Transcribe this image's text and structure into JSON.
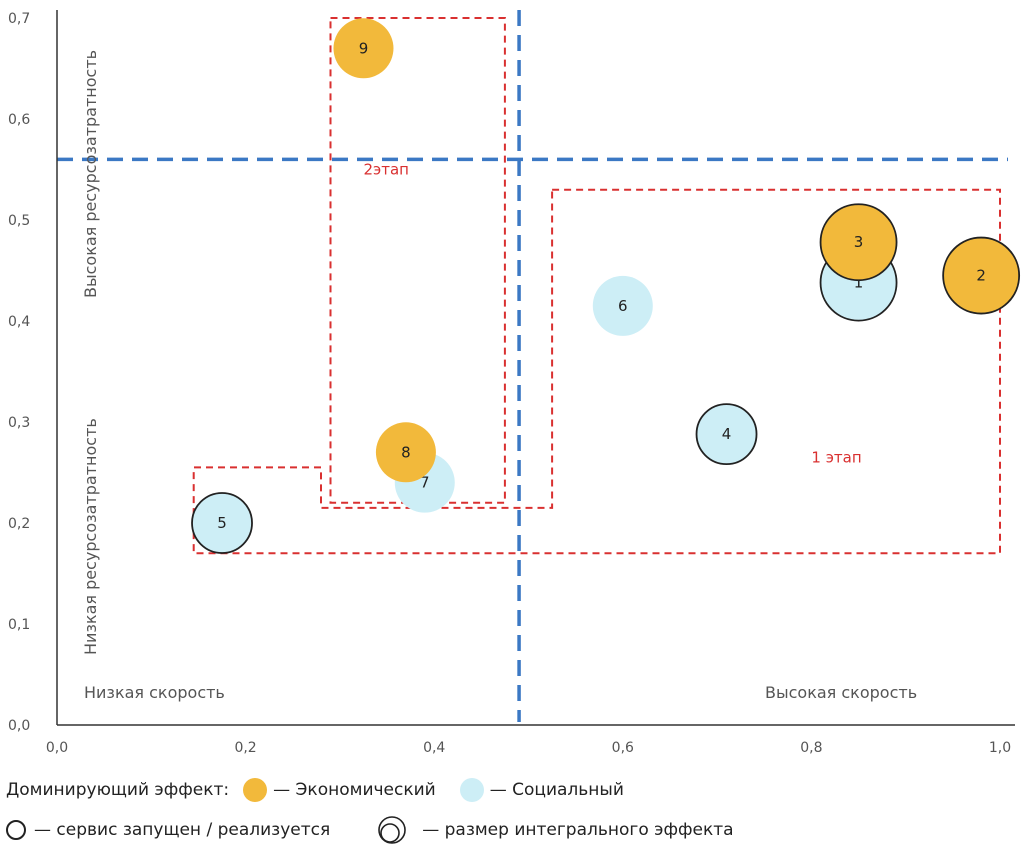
{
  "colors": {
    "economic": "#f2b93b",
    "social": "#cdeef6",
    "axis": "#333333",
    "divider": "#3b78c4",
    "stage": "#d93030"
  },
  "chart_data": {
    "type": "scatter",
    "xlim": [
      0,
      1.0
    ],
    "ylim": [
      0,
      0.7
    ],
    "x_ticks": [
      "0,0",
      "0,2",
      "0,4",
      "0,6",
      "0,8",
      "1,0"
    ],
    "y_ticks": [
      "0,0",
      "0,1",
      "0,2",
      "0,3",
      "0,4",
      "0,5",
      "0,6",
      "0,7"
    ],
    "x_divider": 0.49,
    "y_divider": 0.56,
    "zone_labels": {
      "top_left": "Высокая ресурсозатратность",
      "bottom_left": "Низкая ресурсозатратность",
      "low_speed": "Низкая скорость",
      "high_speed": "Высокая скорость"
    },
    "stages": [
      {
        "label": "2этап",
        "polygon": [
          [
            0.29,
            0.7
          ],
          [
            0.475,
            0.7
          ],
          [
            0.475,
            0.22
          ],
          [
            0.29,
            0.22
          ]
        ]
      },
      {
        "label": "1 этап",
        "polygon": [
          [
            0.525,
            0.53
          ],
          [
            1.0,
            0.53
          ],
          [
            1.0,
            0.17
          ],
          [
            0.145,
            0.17
          ],
          [
            0.145,
            0.255
          ],
          [
            0.28,
            0.255
          ],
          [
            0.28,
            0.215
          ],
          [
            0.525,
            0.215
          ]
        ]
      }
    ],
    "points": [
      {
        "id": "1",
        "x": 0.85,
        "y": 0.438,
        "effect": "social",
        "size": 0.6,
        "launched": true
      },
      {
        "id": "2",
        "x": 0.98,
        "y": 0.445,
        "effect": "economic",
        "size": 0.6,
        "launched": true
      },
      {
        "id": "3",
        "x": 0.85,
        "y": 0.478,
        "effect": "economic",
        "size": 0.6,
        "launched": true
      },
      {
        "id": "4",
        "x": 0.71,
        "y": 0.288,
        "effect": "social",
        "size": 0.4,
        "launched": true
      },
      {
        "id": "5",
        "x": 0.175,
        "y": 0.2,
        "effect": "social",
        "size": 0.4,
        "launched": true
      },
      {
        "id": "6",
        "x": 0.6,
        "y": 0.415,
        "effect": "social",
        "size": 0.4,
        "launched": false
      },
      {
        "id": "7",
        "x": 0.39,
        "y": 0.24,
        "effect": "social",
        "size": 0.4,
        "launched": false
      },
      {
        "id": "8",
        "x": 0.37,
        "y": 0.27,
        "effect": "economic",
        "size": 0.4,
        "launched": false
      },
      {
        "id": "9",
        "x": 0.325,
        "y": 0.67,
        "effect": "economic",
        "size": 0.4,
        "launched": false
      }
    ]
  },
  "legend": {
    "dominant_label": "Доминирующий эффект:",
    "economic_label": "— Экономический",
    "social_label": "— Социальный",
    "launched_label": "— сервис запущен / реализуется",
    "size_label": "— размер интегрального эффекта"
  }
}
